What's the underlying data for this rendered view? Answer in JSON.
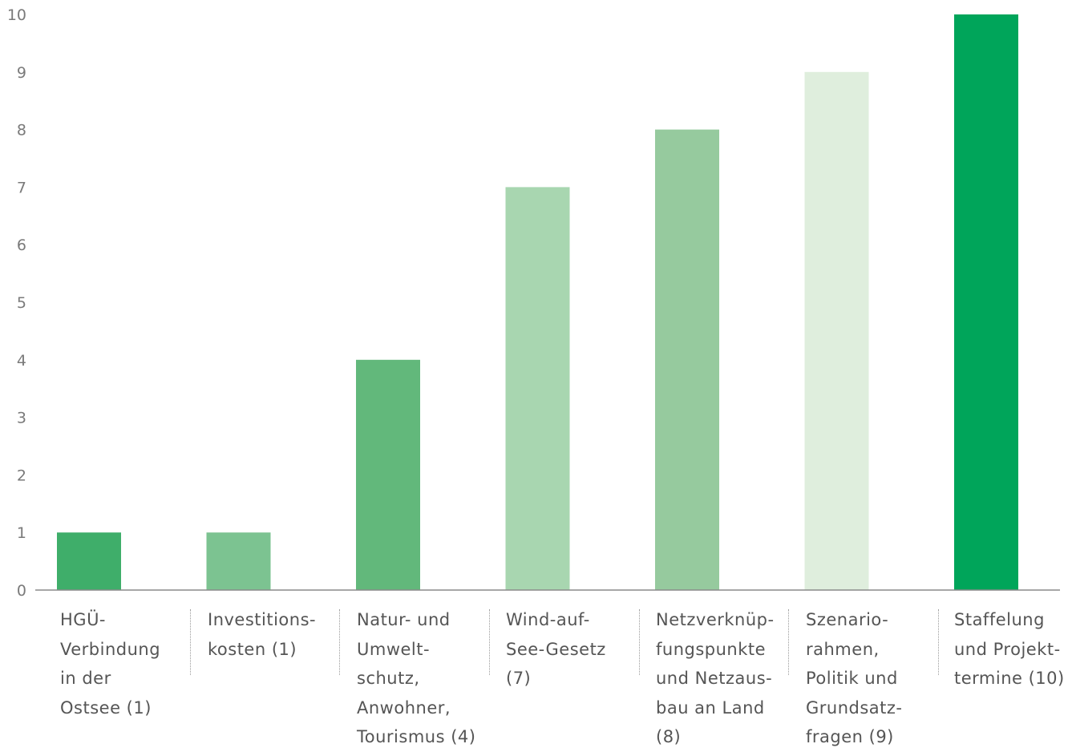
{
  "chart_data": {
    "type": "bar",
    "title": "",
    "xlabel": "",
    "ylabel": "",
    "ylim": [
      0,
      10
    ],
    "yticks": [
      "0",
      "1",
      "2",
      "3",
      "4",
      "5",
      "6",
      "7",
      "8",
      "9",
      "10"
    ],
    "categories": [
      "HGÜ-\nVerbindung\nin der\nOstsee (1)",
      "Investitions-\nkosten (1)",
      "Natur- und\nUmwelt-\nschutz,\nAnwohner,\nTourismus (4)",
      "Wind-auf-\nSee-Gesetz\n(7)",
      "Netzverknüp-\nfungspunkte\nund Netzaus-\nbau an Land\n(8)",
      "Szenario-\nrahmen,\nPolitik und\nGrundsatz-\nfragen (9)",
      "Staffelung\nund Projekt-\ntermine (10)"
    ],
    "values": [
      1,
      1,
      4,
      7,
      8,
      9,
      10
    ],
    "colors": [
      "#3fae6a",
      "#7cc391",
      "#62b87b",
      "#a8d6b0",
      "#96ca9e",
      "#dfeedd",
      "#00a55a"
    ],
    "grid": false,
    "legend": "none"
  }
}
